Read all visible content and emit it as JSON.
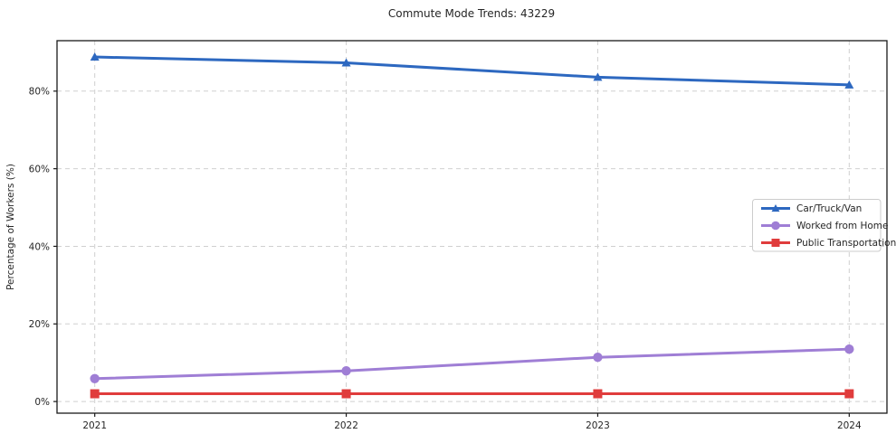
{
  "chart_data": {
    "type": "line",
    "title": "Commute Mode Trends: 43229",
    "xlabel": "",
    "ylabel": "Percentage of Workers (%)",
    "categories": [
      "2021",
      "2022",
      "2023",
      "2024"
    ],
    "series": [
      {
        "name": "Car/Truck/Van",
        "marker": "triangle",
        "color": "#2d68c0",
        "values": [
          88.8,
          87.3,
          83.6,
          81.6
        ]
      },
      {
        "name": "Worked from Home",
        "marker": "circle",
        "color": "#9f7ed5",
        "values": [
          5.9,
          7.9,
          11.4,
          13.5
        ]
      },
      {
        "name": "Public Transportation",
        "marker": "square",
        "color": "#e03c3c",
        "values": [
          2.0,
          2.0,
          2.0,
          2.0
        ]
      }
    ],
    "yticks": {
      "values": [
        0,
        20,
        40,
        60,
        80
      ],
      "labels": [
        "0%",
        "20%",
        "40%",
        "60%",
        "80%"
      ]
    },
    "ylim": [
      -3,
      93
    ],
    "grid": true,
    "grid_style": "dashed",
    "legend_position": "center right"
  },
  "colors": {
    "background": "#ffffff",
    "axis": "#1a1a1a",
    "grid": "#d0d0d0",
    "text": "#262626",
    "legend_border": "#cccccc",
    "legend_background": "#ffffff"
  }
}
